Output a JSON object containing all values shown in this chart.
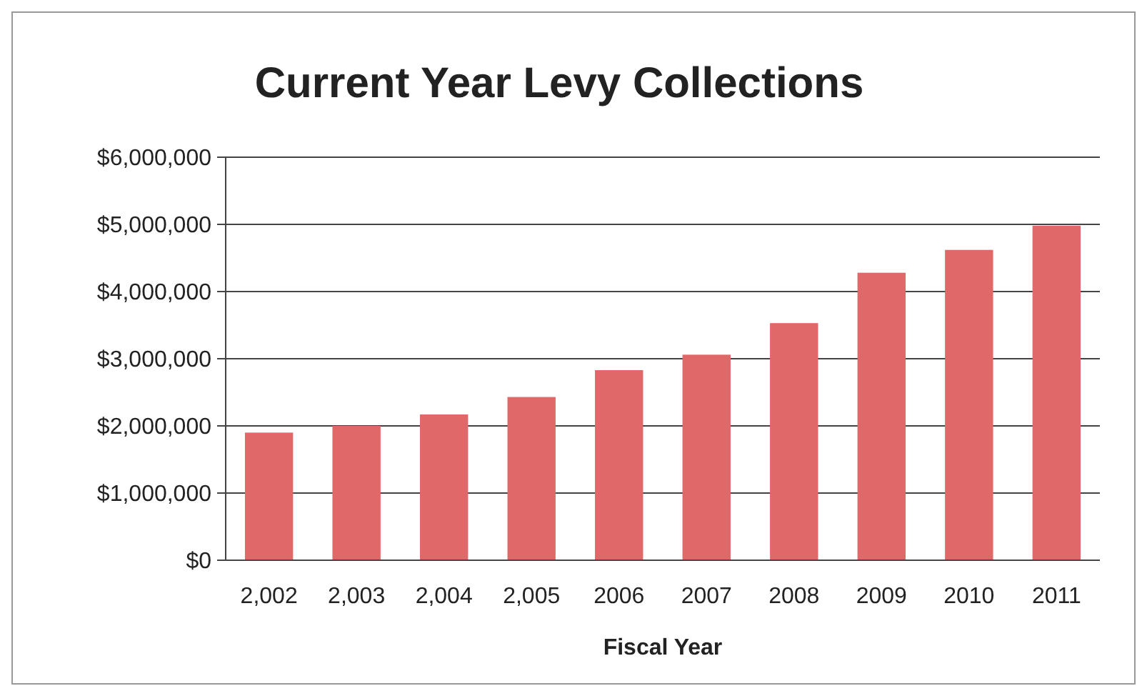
{
  "chart_data": {
    "type": "bar",
    "title": "Current Year Levy Collections",
    "xlabel": "Fiscal Year",
    "categories": [
      "2,002",
      "2,003",
      "2,004",
      "2,005",
      "2006",
      "2007",
      "2008",
      "2009",
      "2010",
      "2011"
    ],
    "values": [
      1900000,
      2000000,
      2170000,
      2430000,
      2830000,
      3060000,
      3530000,
      4280000,
      4620000,
      4980000
    ],
    "color": "#e06868",
    "ylim": [
      0,
      6000000
    ],
    "yticks": [
      {
        "value": 0,
        "label": "$0"
      },
      {
        "value": 1000000,
        "label": "$1,000,000"
      },
      {
        "value": 2000000,
        "label": "$2,000,000"
      },
      {
        "value": 3000000,
        "label": "$3,000,000"
      },
      {
        "value": 4000000,
        "label": "$4,000,000"
      },
      {
        "value": 5000000,
        "label": "$5,000,000"
      },
      {
        "value": 6000000,
        "label": "$6,000,000"
      }
    ],
    "grid": "y"
  }
}
